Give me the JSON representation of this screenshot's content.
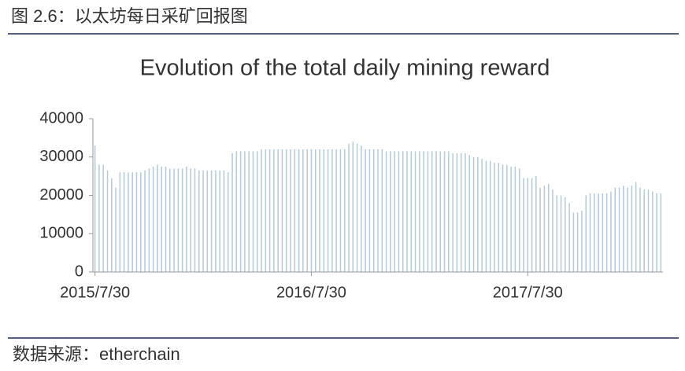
{
  "header": {
    "title": "图 2.6：以太坊每日采矿回报图"
  },
  "footer": {
    "source": "数据来源：etherchain"
  },
  "chart_data": {
    "type": "bar",
    "title": "Evolution of the total daily mining reward",
    "color": "#b3cadb",
    "categories": [
      "2015/7/30",
      null,
      null,
      null,
      null,
      null,
      null,
      null,
      null,
      null,
      null,
      null,
      null,
      null,
      null,
      null,
      null,
      null,
      null,
      null,
      null,
      null,
      null,
      null,
      null,
      null,
      null,
      null,
      null,
      null,
      null,
      null,
      null,
      null,
      null,
      null,
      null,
      null,
      null,
      null,
      null,
      null,
      null,
      null,
      null,
      null,
      null,
      null,
      null,
      null,
      null,
      null,
      "2016/7/30",
      null,
      null,
      null,
      null,
      null,
      null,
      null,
      null,
      null,
      null,
      null,
      null,
      null,
      null,
      null,
      null,
      null,
      null,
      null,
      null,
      null,
      null,
      null,
      null,
      null,
      null,
      null,
      null,
      null,
      null,
      null,
      null,
      null,
      null,
      null,
      null,
      null,
      null,
      null,
      null,
      null,
      null,
      null,
      null,
      null,
      null,
      null,
      null,
      null,
      null,
      null,
      "2017/7/30",
      null,
      null,
      null,
      null,
      null,
      null,
      null,
      null,
      null,
      null,
      null,
      null,
      null,
      null,
      null,
      null,
      null,
      null,
      null,
      null,
      null,
      null,
      null,
      null,
      null,
      null,
      null,
      null,
      null,
      null,
      null,
      null
    ],
    "values": [
      33000,
      28000,
      28000,
      26500,
      24500,
      22000,
      26000,
      26000,
      26000,
      26000,
      26000,
      26000,
      26500,
      27000,
      27500,
      28000,
      27500,
      27500,
      27000,
      27000,
      27000,
      27000,
      27500,
      27000,
      27000,
      26500,
      26500,
      26500,
      26500,
      26500,
      26500,
      26500,
      26000,
      31000,
      31500,
      31500,
      31500,
      31500,
      31500,
      31500,
      32000,
      32000,
      32000,
      32000,
      32000,
      32000,
      32000,
      32000,
      32000,
      32000,
      32000,
      32000,
      32000,
      32000,
      32000,
      32000,
      32000,
      32000,
      32000,
      32000,
      32000,
      33500,
      34000,
      33500,
      33000,
      32000,
      32000,
      32000,
      32000,
      32000,
      31500,
      31500,
      31500,
      31500,
      31500,
      31500,
      31500,
      31500,
      31500,
      31500,
      31500,
      31500,
      31500,
      31500,
      31500,
      31500,
      31000,
      31000,
      31000,
      31000,
      30500,
      30000,
      30000,
      29500,
      29000,
      29000,
      28500,
      28500,
      28000,
      28000,
      27500,
      27500,
      27000,
      24500,
      24500,
      24500,
      25000,
      22000,
      22500,
      23000,
      21500,
      20000,
      20000,
      19500,
      18000,
      15500,
      15500,
      16000,
      20000,
      20500,
      20500,
      20500,
      20500,
      20500,
      21000,
      22000,
      22000,
      22500,
      22000,
      22500,
      23500,
      22000,
      21500,
      21500,
      21000,
      20500,
      20500
    ],
    "ylim": [
      0,
      40000
    ],
    "yticks": [
      0,
      10000,
      20000,
      30000,
      40000
    ]
  }
}
